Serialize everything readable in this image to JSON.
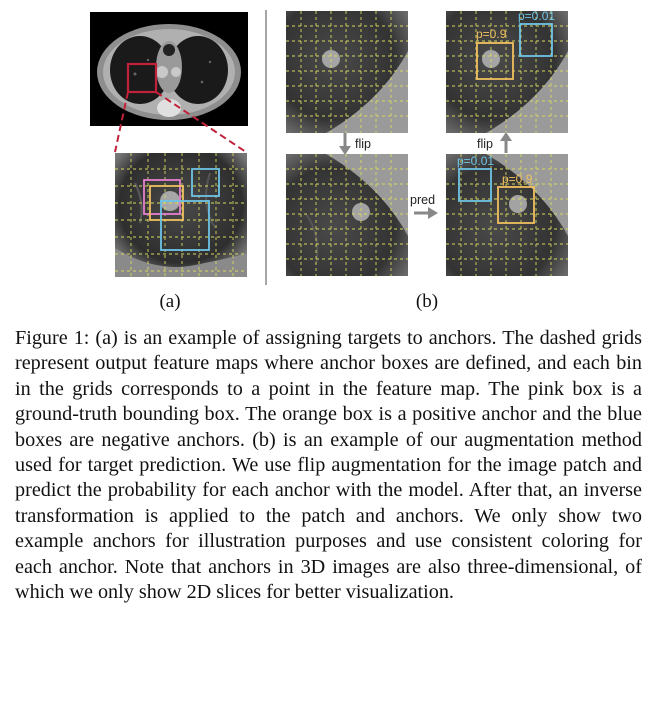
{
  "figure": {
    "panel_a_label": "(a)",
    "panel_b_label": "(b)",
    "arrows": {
      "flip_down": "flip",
      "flip_up": "flip",
      "pred": "pred"
    },
    "anchor_labels": {
      "top_right_orange": "p=0.9",
      "top_right_blue": "p=0.01",
      "bottom_right_blue": "p=0.01",
      "bottom_right_orange": "p=0.9"
    },
    "colors": {
      "ground_truth": "#e77fd0",
      "positive_anchor": "#f0c060",
      "negative_anchor": "#6ec3e6",
      "grid": "#d8d860",
      "zoom_indicator": "#c0223a"
    }
  },
  "caption": {
    "text": "Figure 1: (a) is an example of assigning targets to anchors. The dashed grids represent output feature maps where anchor boxes are defined, and each bin in the grids corresponds to a point in the feature map. The pink box is a ground-truth bounding box. The orange box is a positive anchor and the blue boxes are negative anchors. (b) is an example of our augmentation method used for target prediction. We use flip augmentation for the image patch and predict the probability for each anchor with the model. After that, an inverse transformation is applied to the patch and anchors. We only show two example anchors for illustration purposes and use consistent coloring for each anchor. Note that anchors in 3D images are also three-dimensional, of which we only show 2D slices for better visualization."
  }
}
